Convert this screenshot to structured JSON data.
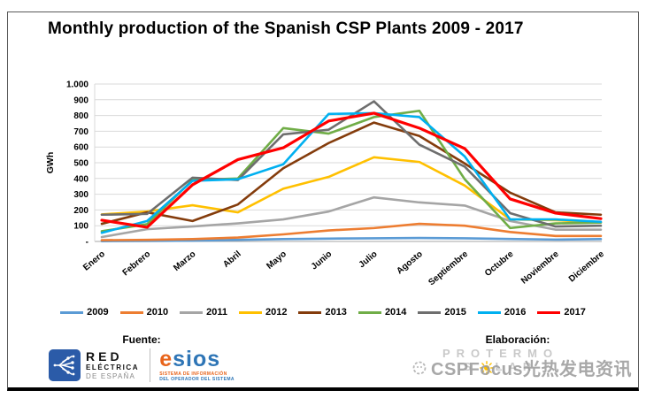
{
  "title": "Monthly production of the Spanish CSP Plants 2009 - 2017",
  "chart_data": {
    "type": "line",
    "title": "Monthly production of the Spanish CSP Plants 2009 - 2017",
    "xlabel": "",
    "ylabel": "GWh",
    "ylim": [
      0,
      1000
    ],
    "ytick_step": 100,
    "ytick_labels": [
      "-",
      "100",
      "200",
      "300",
      "400",
      "500",
      "600",
      "700",
      "800",
      "900",
      "1.000"
    ],
    "grid": "horizontal",
    "legend_position": "bottom",
    "categories": [
      "Enero",
      "Febrero",
      "Marzo",
      "Abril",
      "Mayo",
      "Junio",
      "Julio",
      "Agosto",
      "Septiembre",
      "Octubre",
      "Noviembre",
      "Diciembre"
    ],
    "series": [
      {
        "name": "2009",
        "color": "#5B9BD5",
        "values": [
          2,
          3,
          5,
          10,
          15,
          18,
          20,
          22,
          20,
          16,
          12,
          15
        ]
      },
      {
        "name": "2010",
        "color": "#ED7D31",
        "values": [
          8,
          10,
          15,
          25,
          45,
          70,
          85,
          112,
          100,
          60,
          35,
          35
        ]
      },
      {
        "name": "2011",
        "color": "#A5A5A5",
        "values": [
          28,
          78,
          95,
          115,
          140,
          190,
          280,
          248,
          228,
          130,
          75,
          75
        ]
      },
      {
        "name": "2012",
        "color": "#FFC000",
        "values": [
          172,
          190,
          230,
          185,
          335,
          410,
          535,
          505,
          355,
          140,
          135,
          122
        ]
      },
      {
        "name": "2013",
        "color": "#843C0C",
        "values": [
          112,
          185,
          130,
          235,
          465,
          625,
          755,
          670,
          495,
          310,
          185,
          170
        ]
      },
      {
        "name": "2014",
        "color": "#70AD47",
        "values": [
          65,
          110,
          390,
          400,
          720,
          685,
          790,
          830,
          395,
          85,
          115,
          120
        ]
      },
      {
        "name": "2015",
        "color": "#6E6E6E",
        "values": [
          170,
          175,
          405,
          390,
          680,
          710,
          890,
          615,
          475,
          180,
          95,
          100
        ]
      },
      {
        "name": "2016",
        "color": "#00B0F0",
        "values": [
          55,
          130,
          385,
          395,
          490,
          810,
          815,
          790,
          540,
          140,
          140,
          125
        ]
      },
      {
        "name": "2017",
        "color": "#FF0000",
        "values": [
          135,
          90,
          360,
          520,
          595,
          765,
          815,
          720,
          590,
          270,
          180,
          145
        ]
      }
    ]
  },
  "footer": {
    "fuente_label": "Fuente:",
    "elaboracion_label": "Elaboración:",
    "ree_logo": {
      "line1": "RED",
      "line2": "ELÉCTRICA",
      "line3": "DE ESPAÑA"
    },
    "esios_logo": {
      "e": "e",
      "sios": "sios",
      "sub1": "SISTEMA DE INFORMACIÓN",
      "sub2": "DEL OPERADOR DEL SISTEMA"
    },
    "protermo_logo": {
      "line1": "PROTERMO",
      "line2_left": "S",
      "line2_right": "LAR"
    },
    "watermark_text": "CSPFocus光热发电资讯"
  },
  "colors": {
    "grid": "#D9D9D9",
    "axis": "#A6A6A6",
    "frame_border": "#595959",
    "ree_blue": "#2B5BA8",
    "esios_orange": "#E8641B",
    "esios_blue": "#2E75B6",
    "sun_yellow": "#FFC000",
    "protermo_gray": "#C9C9C9",
    "watermark_gray": "#9A9A9A"
  }
}
